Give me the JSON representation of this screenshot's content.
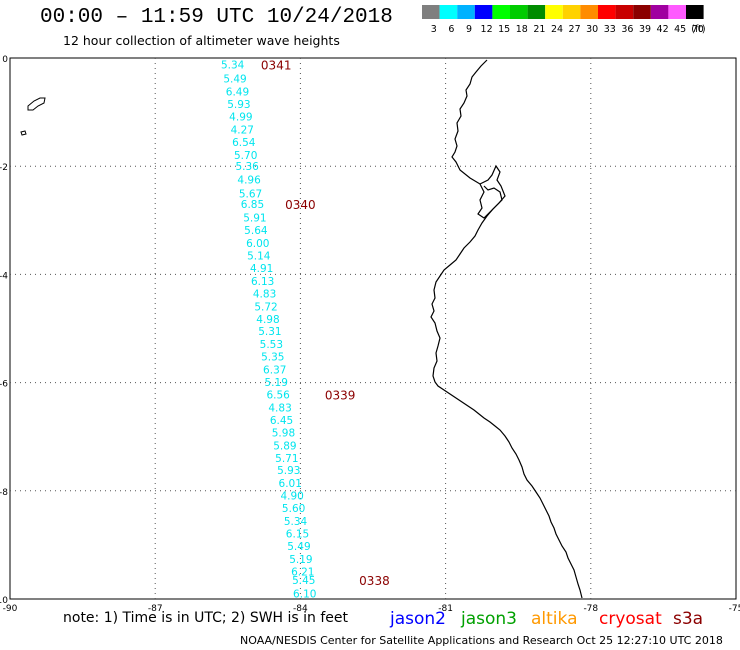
{
  "title": "00:00 – 11:59 UTC 10/24/2018",
  "subtitle": "12 hour collection of altimeter wave heights",
  "legend": {
    "unit": "(ft)",
    "bins": [
      {
        "label": "3",
        "color": "#7f7f7f"
      },
      {
        "label": "6",
        "color": "#00ffff"
      },
      {
        "label": "9",
        "color": "#00b2ff"
      },
      {
        "label": "12",
        "color": "#0000ff"
      },
      {
        "label": "15",
        "color": "#00ff00"
      },
      {
        "label": "18",
        "color": "#00cc00"
      },
      {
        "label": "21",
        "color": "#008c00"
      },
      {
        "label": "24",
        "color": "#ffff00"
      },
      {
        "label": "27",
        "color": "#ffd200"
      },
      {
        "label": "30",
        "color": "#ff8c00"
      },
      {
        "label": "33",
        "color": "#ff0000"
      },
      {
        "label": "36",
        "color": "#c80000"
      },
      {
        "label": "39",
        "color": "#8b0000"
      },
      {
        "label": "42",
        "color": "#a000a0"
      },
      {
        "label": "45",
        "color": "#ff5aff"
      },
      {
        "label": "70",
        "color": "#000000"
      }
    ]
  },
  "axes": {
    "lat_ticks": [
      "0",
      "-2",
      "-4",
      "-6",
      "-8",
      "-10"
    ],
    "lon_ticks": [
      "-90",
      "-87",
      "-84",
      "-81",
      "-78",
      "-75"
    ],
    "lat_range": [
      -10,
      0
    ],
    "lon_range": [
      -90,
      -75
    ],
    "grid": "dotted"
  },
  "track": {
    "color": "#00e5ee",
    "time_color": "#8b0000",
    "points": [
      {
        "lon": -85.4,
        "lat": -0.12,
        "swh": "5.34"
      },
      {
        "lon": -85.35,
        "lat": -0.38,
        "swh": "5.49"
      },
      {
        "lon": -85.3,
        "lat": -0.62,
        "swh": "6.49"
      },
      {
        "lon": -85.27,
        "lat": -0.85,
        "swh": "5.93"
      },
      {
        "lon": -85.23,
        "lat": -1.08,
        "swh": "4.99"
      },
      {
        "lon": -85.2,
        "lat": -1.32,
        "swh": "4.27"
      },
      {
        "lon": -85.17,
        "lat": -1.55,
        "swh": "6.54"
      },
      {
        "lon": -85.13,
        "lat": -1.79,
        "swh": "5.70"
      },
      {
        "lon": -85.1,
        "lat": -2.0,
        "swh": "5.36"
      },
      {
        "lon": -85.06,
        "lat": -2.25,
        "swh": "4.96"
      },
      {
        "lon": -85.03,
        "lat": -2.5,
        "swh": "5.67"
      },
      {
        "lon": -84.99,
        "lat": -2.7,
        "swh": "6.85"
      },
      {
        "lon": -84.94,
        "lat": -2.95,
        "swh": "5.91"
      },
      {
        "lon": -84.92,
        "lat": -3.18,
        "swh": "5.64"
      },
      {
        "lon": -84.88,
        "lat": -3.42,
        "swh": "6.00"
      },
      {
        "lon": -84.86,
        "lat": -3.65,
        "swh": "5.14"
      },
      {
        "lon": -84.8,
        "lat": -3.88,
        "swh": "4.91"
      },
      {
        "lon": -84.78,
        "lat": -4.12,
        "swh": "6.13"
      },
      {
        "lon": -84.74,
        "lat": -4.35,
        "swh": "4.83"
      },
      {
        "lon": -84.71,
        "lat": -4.59,
        "swh": "5.72"
      },
      {
        "lon": -84.67,
        "lat": -4.82,
        "swh": "4.98"
      },
      {
        "lon": -84.63,
        "lat": -5.05,
        "swh": "5.31"
      },
      {
        "lon": -84.6,
        "lat": -5.29,
        "swh": "5.53"
      },
      {
        "lon": -84.57,
        "lat": -5.52,
        "swh": "5.35"
      },
      {
        "lon": -84.53,
        "lat": -5.76,
        "swh": "6.37"
      },
      {
        "lon": -84.5,
        "lat": -5.99,
        "swh": "5.19"
      },
      {
        "lon": -84.46,
        "lat": -6.22,
        "swh": "6.56"
      },
      {
        "lon": -84.42,
        "lat": -6.46,
        "swh": "4.83"
      },
      {
        "lon": -84.39,
        "lat": -6.69,
        "swh": "6.45"
      },
      {
        "lon": -84.35,
        "lat": -6.92,
        "swh": "5.98"
      },
      {
        "lon": -84.32,
        "lat": -7.16,
        "swh": "5.89"
      },
      {
        "lon": -84.28,
        "lat": -7.39,
        "swh": "5.71"
      },
      {
        "lon": -84.24,
        "lat": -7.62,
        "swh": "5.93"
      },
      {
        "lon": -84.21,
        "lat": -7.86,
        "swh": "6.01"
      },
      {
        "lon": -84.17,
        "lat": -8.09,
        "swh": "4.90"
      },
      {
        "lon": -84.14,
        "lat": -8.32,
        "swh": "5.60"
      },
      {
        "lon": -84.1,
        "lat": -8.56,
        "swh": "5.34"
      },
      {
        "lon": -84.06,
        "lat": -8.79,
        "swh": "6.15"
      },
      {
        "lon": -84.03,
        "lat": -9.02,
        "swh": "5.49"
      },
      {
        "lon": -83.99,
        "lat": -9.26,
        "swh": "5.19"
      },
      {
        "lon": -83.95,
        "lat": -9.49,
        "swh": "6.21"
      },
      {
        "lon": -83.93,
        "lat": -9.65,
        "swh": "5.45"
      },
      {
        "lon": -83.91,
        "lat": -9.9,
        "swh": "6.10"
      }
    ],
    "times": [
      {
        "lon": -84.5,
        "lat": -0.12,
        "label": "0341"
      },
      {
        "lon": -84.0,
        "lat": -2.7,
        "label": "0340"
      },
      {
        "lon": -83.18,
        "lat": -6.22,
        "label": "0339"
      },
      {
        "lon": -82.47,
        "lat": -9.65,
        "label": "0338"
      }
    ]
  },
  "note": "note: 1) Time is in UTC; 2) SWH is in feet",
  "satellites": [
    {
      "label": "jason2",
      "color": "#0000ff"
    },
    {
      "label": "jason3",
      "color": "#00a000"
    },
    {
      "label": "altika",
      "color": "#ff9900"
    },
    {
      "label": "cryosat",
      "color": "#ff0000"
    },
    {
      "label": "s3a",
      "color": "#8b0000"
    }
  ],
  "credit": "NOAA/NESDIS Center for Satellite Applications and Research    Oct 25 12:27:10 UTC 2018"
}
